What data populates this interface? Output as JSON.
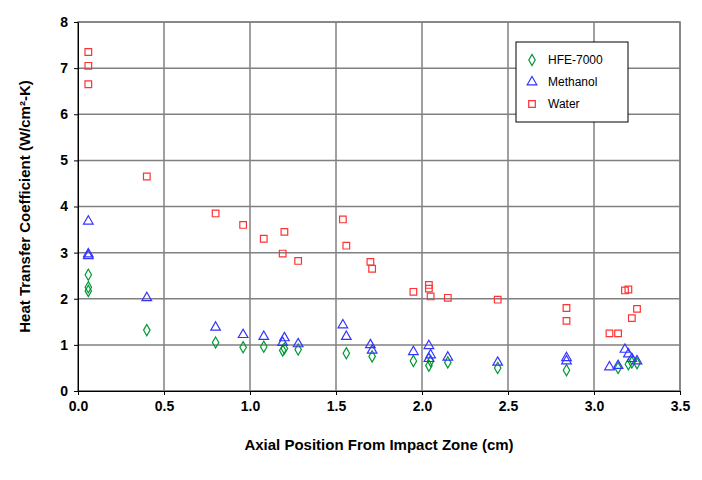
{
  "chart_data": {
    "type": "scatter",
    "x_label": "Axial Position From Impact Zone (cm)",
    "y_label": "Heat Transfer Coefficient (W/cm²-K)",
    "xlim": [
      0,
      3.5
    ],
    "xticks": [
      {
        "value": 0,
        "label": "0.0"
      },
      0.5,
      {
        "value": 1,
        "label": "1.0"
      },
      1.5,
      {
        "value": 2,
        "label": "2.0"
      },
      2.5,
      {
        "value": 3,
        "label": "3.0"
      },
      3.5
    ],
    "ylim": [
      0,
      8
    ],
    "yticks": [
      0,
      1,
      2,
      3,
      4,
      5,
      6,
      7,
      8
    ],
    "grid": true,
    "legend": "upper right",
    "series": [
      {
        "name": "HFE-7000",
        "color": "#009933",
        "marker": "diamond",
        "x": [
          0.06,
          0.06,
          0.06,
          0.4,
          0.8,
          0.96,
          1.08,
          1.19,
          1.2,
          1.28,
          1.56,
          1.71,
          1.95,
          2.04,
          2.05,
          2.15,
          2.44,
          2.84,
          3.14,
          3.2,
          3.22,
          3.25
        ],
        "values": [
          2.52,
          2.25,
          2.17,
          1.32,
          1.05,
          0.95,
          0.96,
          0.88,
          0.92,
          0.9,
          0.82,
          0.75,
          0.65,
          0.55,
          0.65,
          0.62,
          0.5,
          0.45,
          0.5,
          0.58,
          0.62,
          0.6
        ]
      },
      {
        "name": "Methanol",
        "color": "#3333ff",
        "marker": "triangle",
        "x": [
          0.06,
          0.06,
          0.06,
          0.4,
          0.8,
          0.96,
          1.08,
          1.19,
          1.2,
          1.28,
          1.54,
          1.56,
          1.7,
          1.71,
          1.95,
          2.04,
          2.05,
          2.04,
          2.15,
          2.44,
          2.84,
          2.84,
          3.09,
          3.14,
          3.18,
          3.2,
          3.22,
          3.25
        ],
        "values": [
          3.68,
          2.97,
          2.93,
          2.02,
          1.38,
          1.22,
          1.18,
          1.05,
          1.15,
          1.02,
          1.43,
          1.18,
          1.0,
          0.88,
          0.85,
          0.98,
          0.78,
          0.7,
          0.73,
          0.62,
          0.72,
          0.65,
          0.52,
          0.55,
          0.9,
          0.8,
          0.7,
          0.65
        ]
      },
      {
        "name": "Water",
        "color": "#ff3333",
        "marker": "square",
        "x": [
          0.06,
          0.06,
          0.06,
          0.4,
          0.8,
          0.96,
          1.08,
          1.2,
          1.19,
          1.28,
          1.54,
          1.56,
          1.7,
          1.71,
          1.95,
          2.04,
          2.04,
          2.05,
          2.15,
          2.44,
          2.84,
          2.84,
          3.09,
          3.14,
          3.18,
          3.2,
          3.22,
          3.25
        ],
        "values": [
          7.35,
          7.05,
          6.65,
          4.65,
          3.85,
          3.6,
          3.3,
          3.45,
          2.98,
          2.82,
          3.72,
          3.15,
          2.8,
          2.65,
          2.15,
          2.3,
          2.22,
          2.05,
          2.02,
          1.98,
          1.8,
          1.52,
          1.25,
          1.25,
          2.18,
          2.2,
          1.58,
          1.78
        ]
      }
    ]
  }
}
